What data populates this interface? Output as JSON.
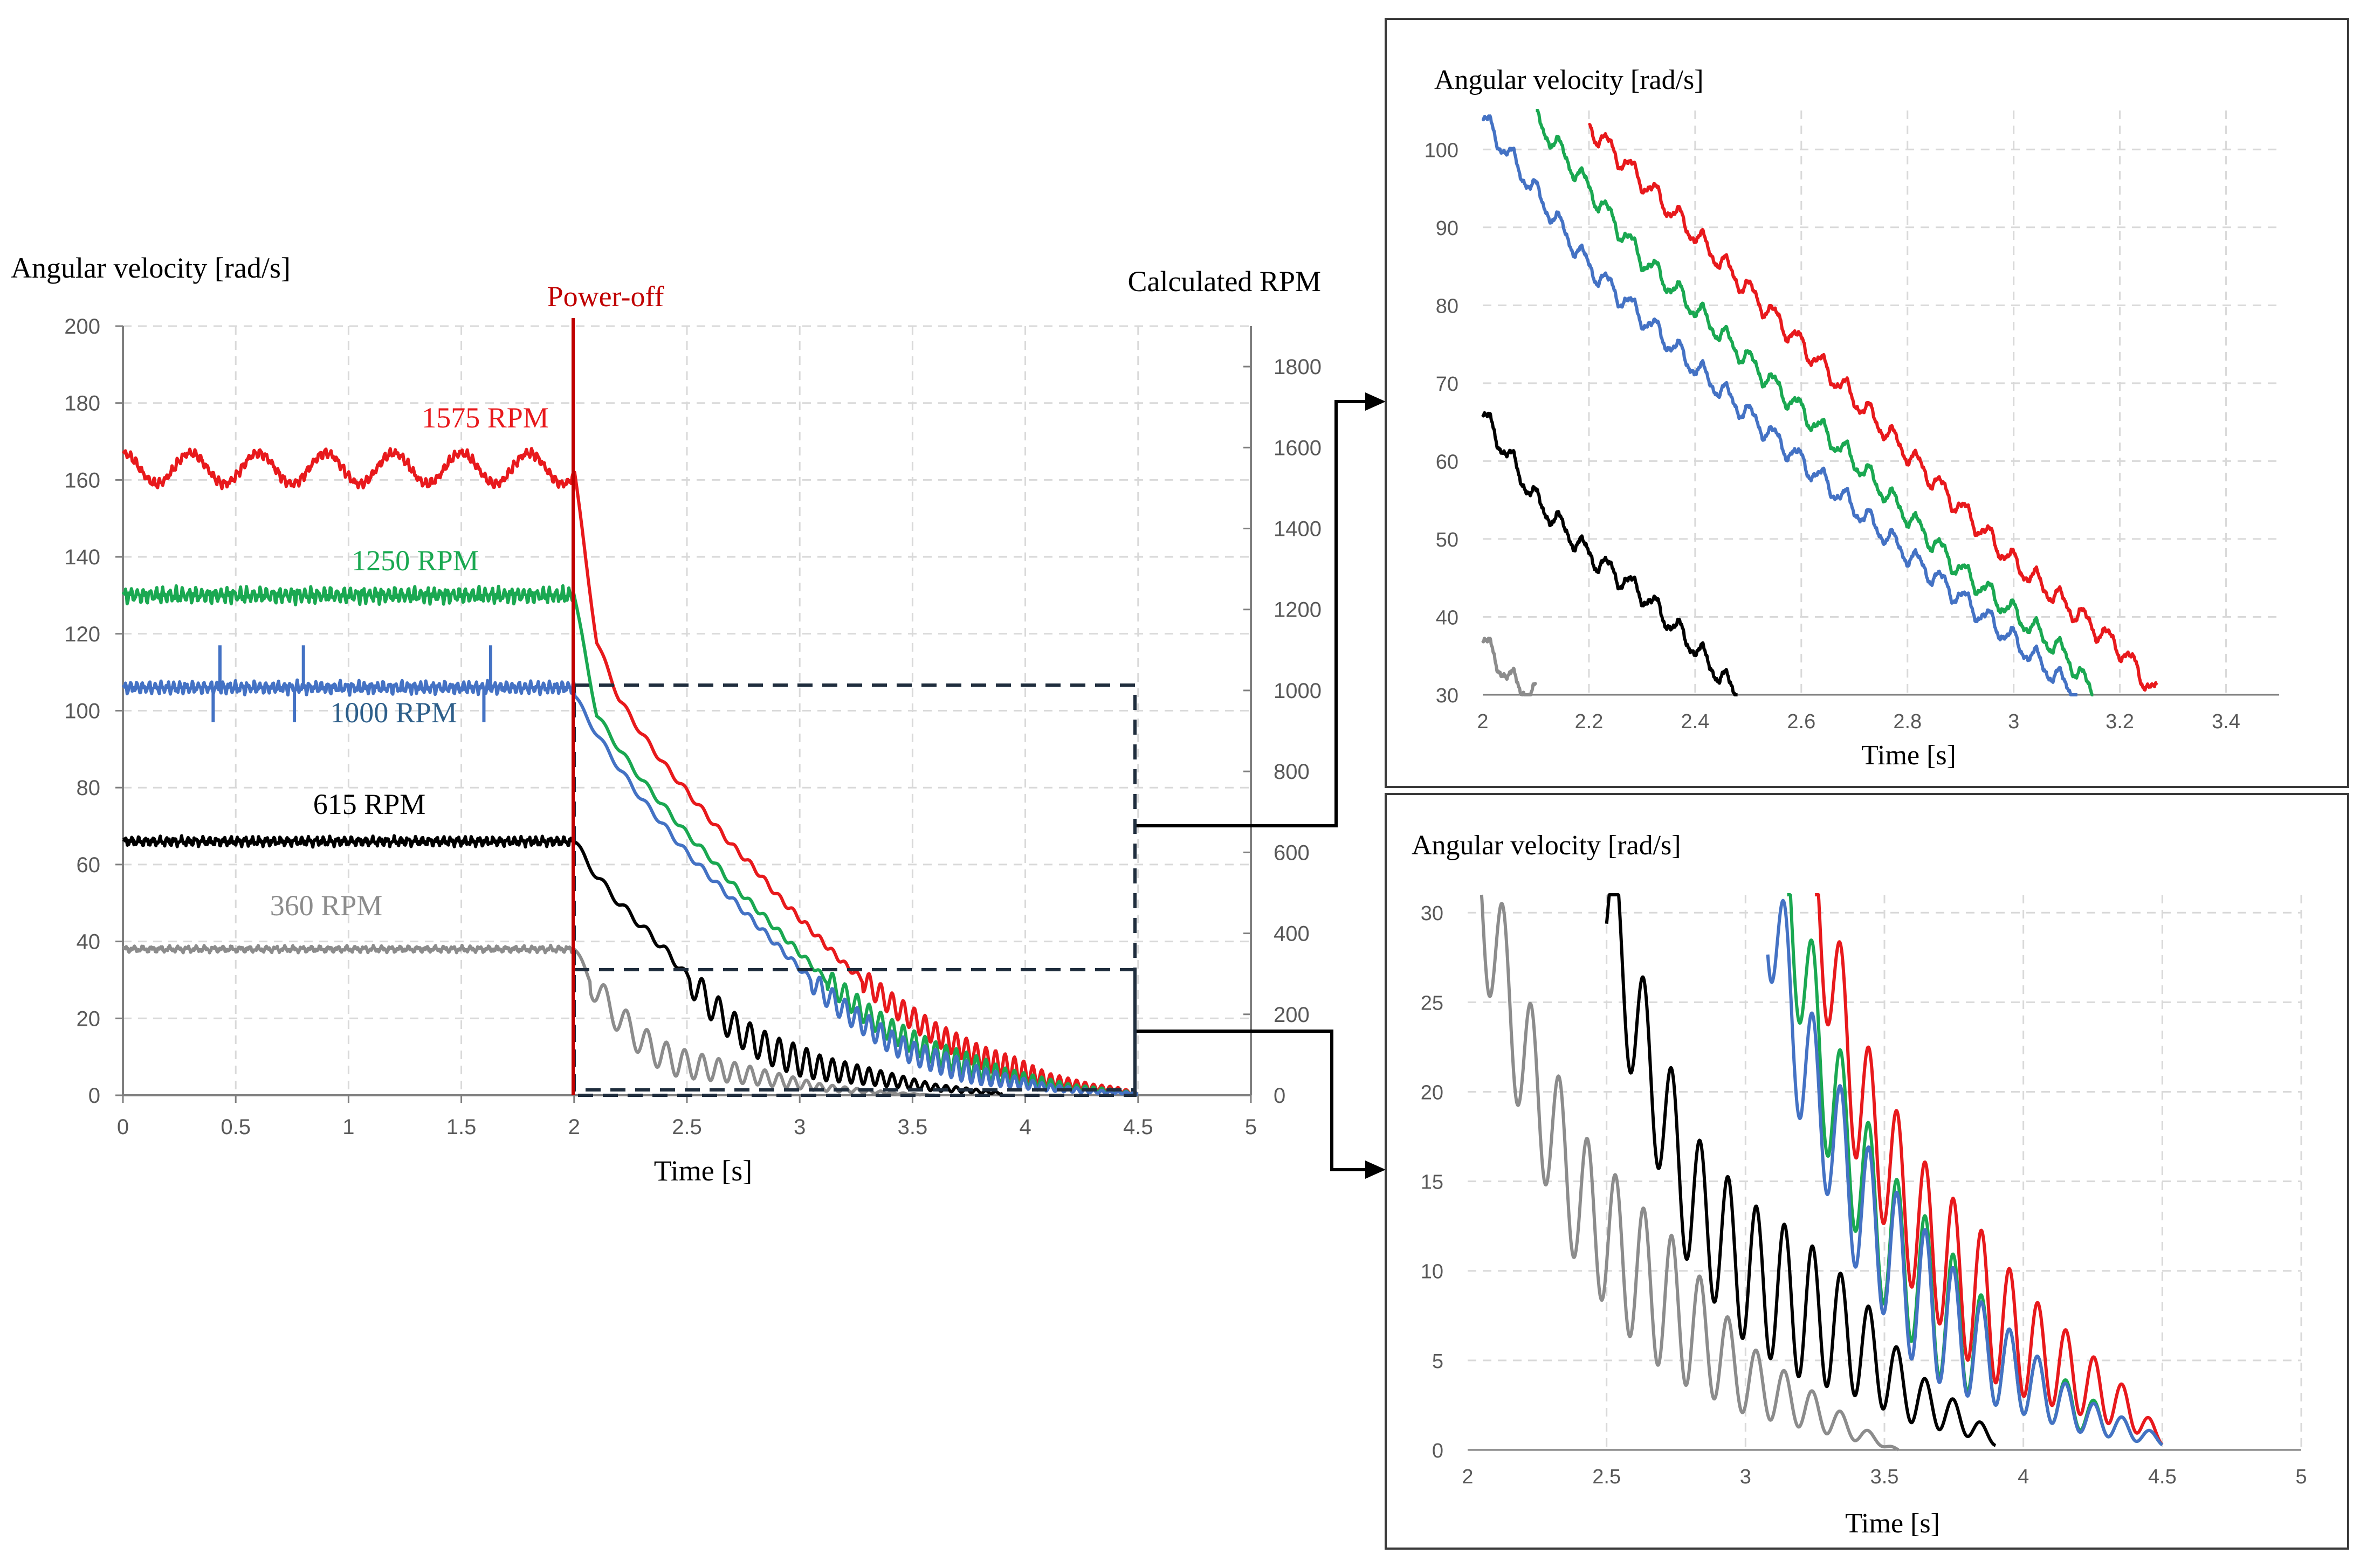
{
  "main_chart": {
    "ylabel": "Angular velocity [rad/s]",
    "y2label": "Calculated RPM",
    "xlabel": "Time [s]",
    "power_off_label": "Power-off",
    "xlim": [
      0,
      5
    ],
    "ylim": [
      0,
      200
    ],
    "y2lim": [
      0,
      1900
    ],
    "x_ticks": [
      "0",
      "0.5",
      "1",
      "1.5",
      "2",
      "2.5",
      "3",
      "3.5",
      "4",
      "4.5",
      "5"
    ],
    "y_ticks": [
      "0",
      "20",
      "40",
      "60",
      "80",
      "100",
      "120",
      "140",
      "160",
      "180",
      "200"
    ],
    "y2_ticks": [
      "0",
      "200",
      "400",
      "600",
      "800",
      "1000",
      "1200",
      "1400",
      "1600",
      "1800"
    ],
    "power_off_time": 2,
    "series_labels": {
      "s1575": "1575 RPM",
      "s1250": "1250 RPM",
      "s1000": "1000 RPM",
      "s615": "615 RPM",
      "s360": "360 RPM"
    }
  },
  "zoom_top": {
    "ylabel": "Angular velocity [rad/s]",
    "xlabel": "Time [s]",
    "xlim": [
      2,
      3.5
    ],
    "ylim": [
      30,
      105
    ],
    "x_ticks": [
      "2",
      "2.2",
      "2.4",
      "2.6",
      "2.8",
      "3",
      "3.2",
      "3.4"
    ],
    "y_ticks": [
      "30",
      "40",
      "50",
      "60",
      "70",
      "80",
      "90",
      "100"
    ]
  },
  "zoom_bottom": {
    "ylabel": "Angular velocity [rad/s]",
    "xlabel": "Time [s]",
    "xlim": [
      2,
      5
    ],
    "ylim": [
      0,
      31
    ],
    "x_ticks": [
      "2",
      "2.5",
      "3",
      "3.5",
      "4",
      "4.5",
      "5"
    ],
    "y_ticks": [
      "0",
      "5",
      "10",
      "15",
      "20",
      "25",
      "30"
    ]
  },
  "colors": {
    "s1575": "#e8191c",
    "s1250": "#1aa851",
    "s1000": "#4472c4",
    "s615": "#000000",
    "s360": "#8c8c8c",
    "power_off_line": "#c00000",
    "label_1000": "#2e5f8a",
    "grid": "#d9d9d9",
    "axis": "#7f7f7f"
  },
  "chart_data": [
    {
      "type": "line",
      "title": "",
      "xlabel": "Time [s]",
      "ylabel": "Angular velocity [rad/s]",
      "y2label": "Calculated RPM",
      "xlim": [
        0,
        5
      ],
      "ylim": [
        0,
        200
      ],
      "y2lim": [
        0,
        1900
      ],
      "annotation": "Power-off at t = 2 s",
      "series": [
        {
          "name": "1575 RPM",
          "steady_value": 163,
          "x": [
            0,
            2,
            2.05,
            2.1,
            2.2,
            2.3,
            2.4,
            2.5,
            2.6,
            2.7,
            2.8,
            2.9,
            3.0,
            3.1,
            3.2,
            3.3,
            3.4,
            3.5,
            3.6,
            3.7,
            3.8,
            3.9,
            4.0,
            4.1,
            4.2,
            4.3,
            4.4,
            4.5
          ],
          "y": [
            163,
            163,
            140,
            118,
            103,
            94,
            86,
            79,
            72,
            65,
            59,
            52,
            46,
            40,
            34,
            29,
            24,
            20,
            16,
            13,
            10,
            8,
            6,
            4,
            3,
            2,
            1.5,
            0.5
          ]
        },
        {
          "name": "1250 RPM",
          "steady_value": 130,
          "x": [
            0,
            2,
            2.1,
            2.2,
            2.3,
            2.4,
            2.5,
            2.6,
            2.7,
            2.8,
            2.9,
            3.0,
            3.1,
            3.2,
            3.3,
            3.4,
            3.5,
            3.6,
            3.7,
            3.8,
            3.9,
            4.0,
            4.1,
            4.2,
            4.3,
            4.4,
            4.5
          ],
          "y": [
            130,
            130,
            99,
            90,
            82,
            75,
            68,
            62,
            55,
            49,
            43,
            37,
            31,
            26,
            21,
            17,
            14,
            11,
            9,
            7,
            5,
            4,
            3,
            2,
            1.5,
            1,
            0.5
          ]
        },
        {
          "name": "1000 RPM",
          "steady_value": 106,
          "x": [
            0,
            2,
            2.1,
            2.2,
            2.3,
            2.4,
            2.5,
            2.6,
            2.7,
            2.8,
            2.9,
            3.0,
            3.1,
            3.2,
            3.3,
            3.4,
            3.5,
            3.6,
            3.7,
            3.8,
            3.9,
            4.0,
            4.1,
            4.2,
            4.3,
            4.4,
            4.5
          ],
          "y": [
            106,
            104,
            94,
            85,
            77,
            70,
            63,
            57,
            51,
            45,
            39,
            33,
            27,
            22,
            18,
            14,
            11,
            9,
            7,
            5,
            4,
            3,
            2,
            1.5,
            1,
            0.7,
            0.5
          ]
        },
        {
          "name": "615 RPM",
          "steady_value": 66,
          "x": [
            0,
            2,
            2.1,
            2.2,
            2.3,
            2.4,
            2.5,
            2.6,
            2.7,
            2.8,
            2.9,
            3.0,
            3.1,
            3.2,
            3.3,
            3.4,
            3.5,
            3.6,
            3.7,
            3.8,
            3.9
          ],
          "y": [
            66,
            66,
            57,
            50,
            44,
            38,
            31,
            24,
            18,
            14,
            11,
            9,
            7,
            6,
            5,
            4,
            3,
            2,
            1.5,
            1,
            0.5
          ]
        },
        {
          "name": "360 RPM",
          "steady_value": 38,
          "x": [
            0,
            2,
            2.1,
            2.2,
            2.3,
            2.4,
            2.5,
            2.6,
            2.7,
            2.8,
            2.9,
            3.0,
            3.1,
            3.2,
            3.3,
            3.4,
            3.5,
            3.6
          ],
          "y": [
            38,
            38,
            27,
            20,
            14,
            10,
            8,
            7,
            6,
            5,
            4,
            3,
            2,
            1.5,
            1,
            0.6,
            0.3,
            0
          ]
        }
      ]
    },
    {
      "type": "line",
      "title": "",
      "xlabel": "Time [s]",
      "ylabel": "Angular velocity [rad/s]",
      "xlim": [
        2,
        3.5
      ],
      "ylim": [
        30,
        105
      ],
      "series": [
        {
          "name": "1575 RPM",
          "x": [
            2.2,
            2.4,
            2.6,
            2.8,
            3.0,
            3.2,
            3.27
          ],
          "y": [
            103,
            89,
            75,
            61,
            47,
            36,
            30
          ]
        },
        {
          "name": "1250 RPM",
          "x": [
            2.1,
            2.3,
            2.5,
            2.7,
            2.9,
            3.1,
            3.15
          ],
          "y": [
            104,
            86,
            73,
            60,
            46,
            35,
            30
          ]
        },
        {
          "name": "1000 RPM",
          "x": [
            2.0,
            2.2,
            2.4,
            2.6,
            2.8,
            3.0,
            3.12
          ],
          "y": [
            104,
            85,
            72,
            60,
            48,
            37,
            30
          ]
        },
        {
          "name": "615 RPM",
          "x": [
            2.0,
            2.1,
            2.2,
            2.3,
            2.4,
            2.48
          ],
          "y": [
            66,
            55,
            48,
            43,
            36,
            30
          ]
        },
        {
          "name": "360 RPM",
          "x": [
            2.0,
            2.05,
            2.1
          ],
          "y": [
            37,
            32,
            30
          ]
        }
      ]
    },
    {
      "type": "line",
      "title": "",
      "xlabel": "Time [s]",
      "ylabel": "Angular velocity [rad/s]",
      "xlim": [
        2,
        5
      ],
      "ylim": [
        0,
        31
      ],
      "series": [
        {
          "name": "1575 RPM",
          "x": [
            3.25,
            3.4,
            3.6,
            3.8,
            4.0,
            4.2,
            4.4,
            4.5
          ],
          "y": [
            31,
            20,
            13,
            9,
            6,
            4,
            2,
            0.5
          ]
        },
        {
          "name": "1250 RPM",
          "x": [
            3.15,
            3.3,
            3.5,
            3.7,
            3.9,
            4.1,
            4.3,
            4.5
          ],
          "y": [
            31,
            20,
            12,
            8,
            5,
            3,
            1.5,
            0.5
          ]
        },
        {
          "name": "1000 RPM",
          "x": [
            3.08,
            3.2,
            3.4,
            3.6,
            3.8,
            4.0,
            4.2,
            4.5
          ],
          "y": [
            31,
            22,
            14,
            9,
            6,
            4,
            2,
            0.5
          ]
        },
        {
          "name": "615 RPM",
          "x": [
            2.5,
            2.6,
            2.8,
            3.0,
            3.2,
            3.4,
            3.6,
            3.8,
            3.9
          ],
          "y": [
            31,
            24,
            14,
            10,
            8,
            6,
            3,
            1.5,
            0.5
          ]
        },
        {
          "name": "360 RPM",
          "x": [
            2.05,
            2.2,
            2.4,
            2.6,
            2.8,
            3.0,
            3.2,
            3.4,
            3.55
          ],
          "y": [
            31,
            22,
            14,
            10,
            7,
            4,
            2.5,
            1,
            0
          ]
        }
      ]
    }
  ]
}
